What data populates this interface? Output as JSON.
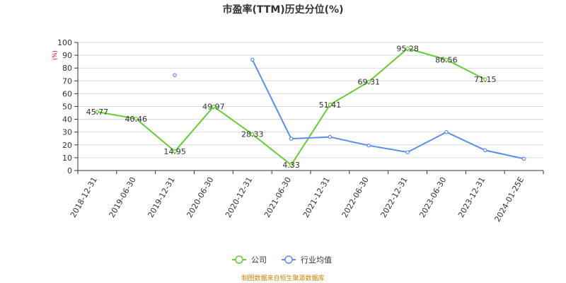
{
  "chart_data": {
    "type": "line",
    "title": "市盈率(TTM)历史分位(%)",
    "y_unit": "(%)",
    "categories": [
      "2018-12-31",
      "2019-06-30",
      "2019-12-31",
      "2020-06-30",
      "2020-12-31",
      "2021-06-30",
      "2021-12-31",
      "2022-06-30",
      "2022-12-31",
      "2023-06-30",
      "2023-12-31",
      "2024-01-25E"
    ],
    "ylim": [
      0,
      100
    ],
    "yticks": [
      0,
      10,
      20,
      30,
      40,
      50,
      60,
      70,
      80,
      90,
      100
    ],
    "grid": true,
    "legend_position": "bottom-center",
    "series": [
      {
        "name": "公司",
        "color": "#66cc33",
        "values": [
          45.77,
          40.46,
          14.95,
          49.97,
          28.33,
          4.33,
          51.41,
          69.31,
          95.28,
          86.56,
          71.15,
          null
        ],
        "labels": [
          "45.77",
          "40.46",
          "14.95",
          "49.97",
          "28.33",
          "4.33",
          "51.41",
          "69.31",
          "95.28",
          "86.56",
          "71.15",
          ""
        ]
      },
      {
        "name": "行业均值",
        "color": "#5b8def",
        "values": [
          null,
          null,
          74.5,
          null,
          86.5,
          24.8,
          26.2,
          19.5,
          14.3,
          30.0,
          15.8,
          9.2
        ]
      }
    ]
  },
  "footer": {
    "source": "制图数据来自恒生聚源数据库"
  }
}
